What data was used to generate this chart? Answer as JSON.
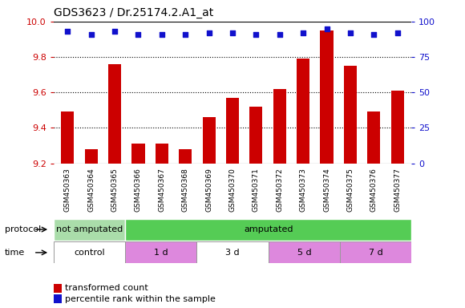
{
  "title": "GDS3623 / Dr.25174.2.A1_at",
  "samples": [
    "GSM450363",
    "GSM450364",
    "GSM450365",
    "GSM450366",
    "GSM450367",
    "GSM450368",
    "GSM450369",
    "GSM450370",
    "GSM450371",
    "GSM450372",
    "GSM450373",
    "GSM450374",
    "GSM450375",
    "GSM450376",
    "GSM450377"
  ],
  "transformed_counts": [
    9.49,
    9.28,
    9.76,
    9.31,
    9.31,
    9.28,
    9.46,
    9.57,
    9.52,
    9.62,
    9.79,
    9.95,
    9.75,
    9.49,
    9.61
  ],
  "percentile_ranks": [
    93,
    91,
    93,
    91,
    91,
    91,
    92,
    92,
    91,
    91,
    92,
    95,
    92,
    91,
    92
  ],
  "ylim_left": [
    9.2,
    10.0
  ],
  "ylim_right": [
    0,
    100
  ],
  "yticks_left": [
    9.2,
    9.4,
    9.6,
    9.8,
    10.0
  ],
  "yticks_right": [
    0,
    25,
    50,
    75,
    100
  ],
  "bar_color": "#cc0000",
  "dot_color": "#1111cc",
  "bg_color": "#ffffff",
  "xtick_bg_color": "#cccccc",
  "protocol_groups": [
    {
      "label": "not amputated",
      "start": 0,
      "end": 3,
      "color": "#aaddaa"
    },
    {
      "label": "amputated",
      "start": 3,
      "end": 15,
      "color": "#55cc55"
    }
  ],
  "time_groups": [
    {
      "label": "control",
      "start": 0,
      "end": 3,
      "color": "#ffffff"
    },
    {
      "label": "1 d",
      "start": 3,
      "end": 6,
      "color": "#dd88dd"
    },
    {
      "label": "3 d",
      "start": 6,
      "end": 9,
      "color": "#ffffff"
    },
    {
      "label": "5 d",
      "start": 9,
      "end": 12,
      "color": "#dd88dd"
    },
    {
      "label": "7 d",
      "start": 12,
      "end": 15,
      "color": "#dd88dd"
    }
  ],
  "legend_items": [
    {
      "color": "#cc0000",
      "label": "transformed count"
    },
    {
      "color": "#1111cc",
      "label": "percentile rank within the sample"
    }
  ],
  "axis_color_left": "#cc0000",
  "axis_color_right": "#1111cc",
  "n_samples": 15
}
